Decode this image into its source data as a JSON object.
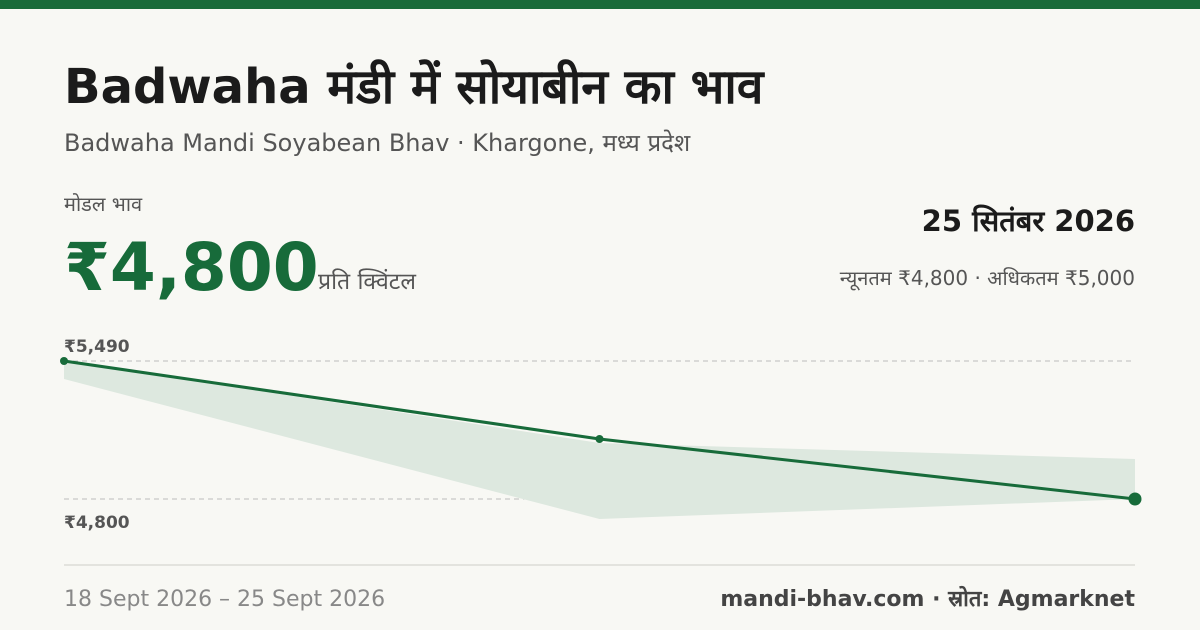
{
  "header": {
    "title": "Badwaha मंडी में सोयाबीन का भाव",
    "subtitle": "Badwaha Mandi Soyabean Bhav · Khargone, मध्य प्रदेश",
    "price_label": "मोडल भाव",
    "price": "₹4,800",
    "price_unit": "प्रति क्विंटल",
    "date": "25 सितंबर 2026",
    "range": "न्यूनतम ₹4,800 · अधिकतम ₹5,000"
  },
  "chart_data": {
    "type": "line",
    "categories": [
      null,
      null,
      null
    ],
    "series": [
      {
        "color": "#176b3a",
        "values": [
          5490,
          5100,
          4800
        ]
      }
    ],
    "band": {
      "color": "#dde8df",
      "max": [
        5490,
        5080,
        5000
      ],
      "min": [
        5400,
        4700,
        4800
      ]
    },
    "ylim": [
      4600,
      5600
    ],
    "yticks": [
      {
        "value": 5490,
        "label": "₹5,490"
      },
      {
        "value": 4800,
        "label": "₹4,800"
      }
    ],
    "grid": true
  },
  "footer": {
    "period": "18 Sept 2026 – 25 Sept 2026",
    "source": "mandi-bhav.com · स्रोत: Agmarknet"
  }
}
